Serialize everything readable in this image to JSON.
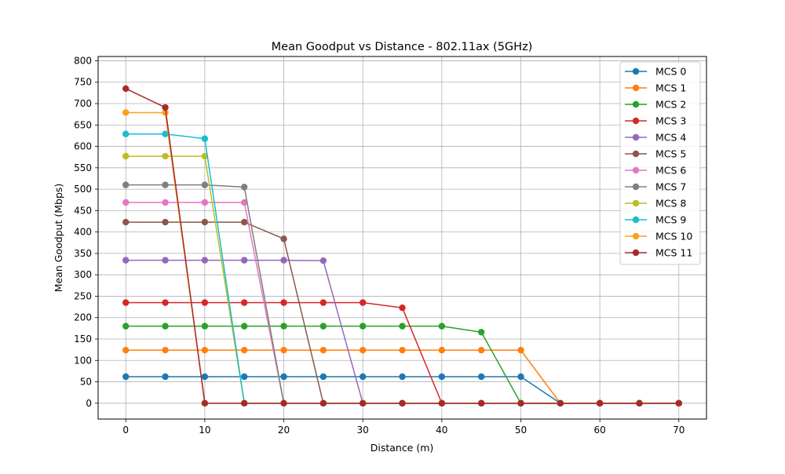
{
  "chart_data": {
    "type": "line",
    "title": "Mean Goodput vs Distance - 802.11ax (5GHz)",
    "xlabel": "Distance (m)",
    "ylabel": "Mean Goodput (Mbps)",
    "xlim": [
      -3.5,
      73.5
    ],
    "ylim": [
      -37,
      810
    ],
    "grid": true,
    "legend_position": "top-right",
    "x_ticks": [
      0,
      10,
      20,
      30,
      40,
      50,
      60,
      70
    ],
    "y_ticks": [
      0,
      50,
      100,
      150,
      200,
      250,
      300,
      350,
      400,
      450,
      500,
      550,
      600,
      650,
      700,
      750,
      800
    ],
    "x": [
      0,
      5,
      10,
      15,
      20,
      25,
      30,
      35,
      40,
      45,
      50,
      55,
      60,
      65,
      70
    ],
    "series": [
      {
        "name": "MCS 0",
        "color": "#1f77b4",
        "values": [
          62,
          62,
          62,
          62,
          62,
          62,
          62,
          62,
          62,
          62,
          62,
          0,
          0,
          0,
          0
        ]
      },
      {
        "name": "MCS 1",
        "color": "#ff7f0e",
        "values": [
          124,
          124,
          124,
          124,
          124,
          124,
          124,
          124,
          124,
          124,
          124,
          0,
          0,
          0,
          0
        ]
      },
      {
        "name": "MCS 2",
        "color": "#2ca02c",
        "values": [
          180,
          180,
          180,
          180,
          180,
          180,
          180,
          180,
          180,
          166,
          0,
          0,
          0,
          0,
          0
        ]
      },
      {
        "name": "MCS 3",
        "color": "#d62728",
        "values": [
          235,
          235,
          235,
          235,
          235,
          235,
          235,
          223,
          0,
          0,
          0,
          0,
          0,
          0,
          0
        ]
      },
      {
        "name": "MCS 4",
        "color": "#9467bd",
        "values": [
          334,
          334,
          334,
          334,
          334,
          333,
          0,
          0,
          0,
          0,
          0,
          0,
          0,
          0,
          0
        ]
      },
      {
        "name": "MCS 5",
        "color": "#8c564b",
        "values": [
          423,
          423,
          423,
          423,
          384,
          0,
          0,
          0,
          0,
          0,
          0,
          0,
          0,
          0,
          0
        ]
      },
      {
        "name": "MCS 6",
        "color": "#e377c2",
        "values": [
          469,
          469,
          469,
          469,
          0,
          0,
          0,
          0,
          0,
          0,
          0,
          0,
          0,
          0,
          0
        ]
      },
      {
        "name": "MCS 7",
        "color": "#7f7f7f",
        "values": [
          510,
          510,
          510,
          505,
          0,
          0,
          0,
          0,
          0,
          0,
          0,
          0,
          0,
          0,
          0
        ]
      },
      {
        "name": "MCS 8",
        "color": "#bcbd22",
        "values": [
          577,
          577,
          577,
          0,
          0,
          0,
          0,
          0,
          0,
          0,
          0,
          0,
          0,
          0,
          0
        ]
      },
      {
        "name": "MCS 9",
        "color": "#17becf",
        "values": [
          629,
          629,
          618,
          0,
          0,
          0,
          0,
          0,
          0,
          0,
          0,
          0,
          0,
          0,
          0
        ]
      },
      {
        "name": "MCS 10",
        "color": "#ff9f1c",
        "values": [
          679,
          679,
          0,
          0,
          0,
          0,
          0,
          0,
          0,
          0,
          0,
          0,
          0,
          0,
          0
        ]
      },
      {
        "name": "MCS 11",
        "color": "#a52a2a",
        "values": [
          735,
          691,
          0,
          0,
          0,
          0,
          0,
          0,
          0,
          0,
          0,
          0,
          0,
          0,
          0
        ]
      }
    ]
  }
}
